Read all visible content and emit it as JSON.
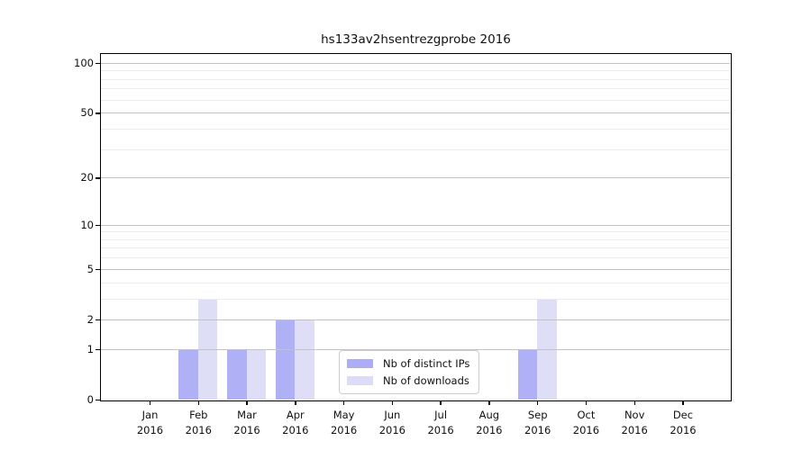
{
  "chart_data": {
    "type": "bar",
    "title": "hs133av2hsentrezgprobe 2016",
    "categories": [
      "Jan",
      "Feb",
      "Mar",
      "Apr",
      "May",
      "Jun",
      "Jul",
      "Aug",
      "Sep",
      "Oct",
      "Nov",
      "Dec"
    ],
    "x_sublabel": "2016",
    "series": [
      {
        "name": "Nb of distinct IPs",
        "color": "#acacf7",
        "values": [
          0,
          1,
          1,
          2,
          0,
          0,
          0,
          0,
          1,
          0,
          0,
          0
        ]
      },
      {
        "name": "Nb of downloads",
        "color": "#dcdcf6",
        "values": [
          0,
          3,
          1,
          2,
          0,
          0,
          0,
          0,
          3,
          0,
          0,
          0
        ]
      }
    ],
    "y_scale": "log1p",
    "y_ticks": [
      0,
      1,
      2,
      5,
      10,
      20,
      50,
      100
    ],
    "y_minor_gridlines": [
      3,
      4,
      6,
      7,
      8,
      9,
      30,
      40,
      60,
      70,
      80,
      90
    ],
    "ylim": [
      0,
      113
    ],
    "xlabel": "",
    "ylabel": "",
    "grid": true,
    "legend": {
      "entries": [
        "Nb of distinct IPs",
        "Nb of downloads"
      ],
      "position": "inside-lower-center"
    }
  },
  "colors": {
    "bar_distinct_ips": "#acacf7",
    "bar_downloads": "#dcdcf6",
    "grid_major": "#c3c3c3",
    "grid_minor": "#ececec",
    "axis": "#000000",
    "legend_border": "#cccccc",
    "background": "#ffffff"
  }
}
